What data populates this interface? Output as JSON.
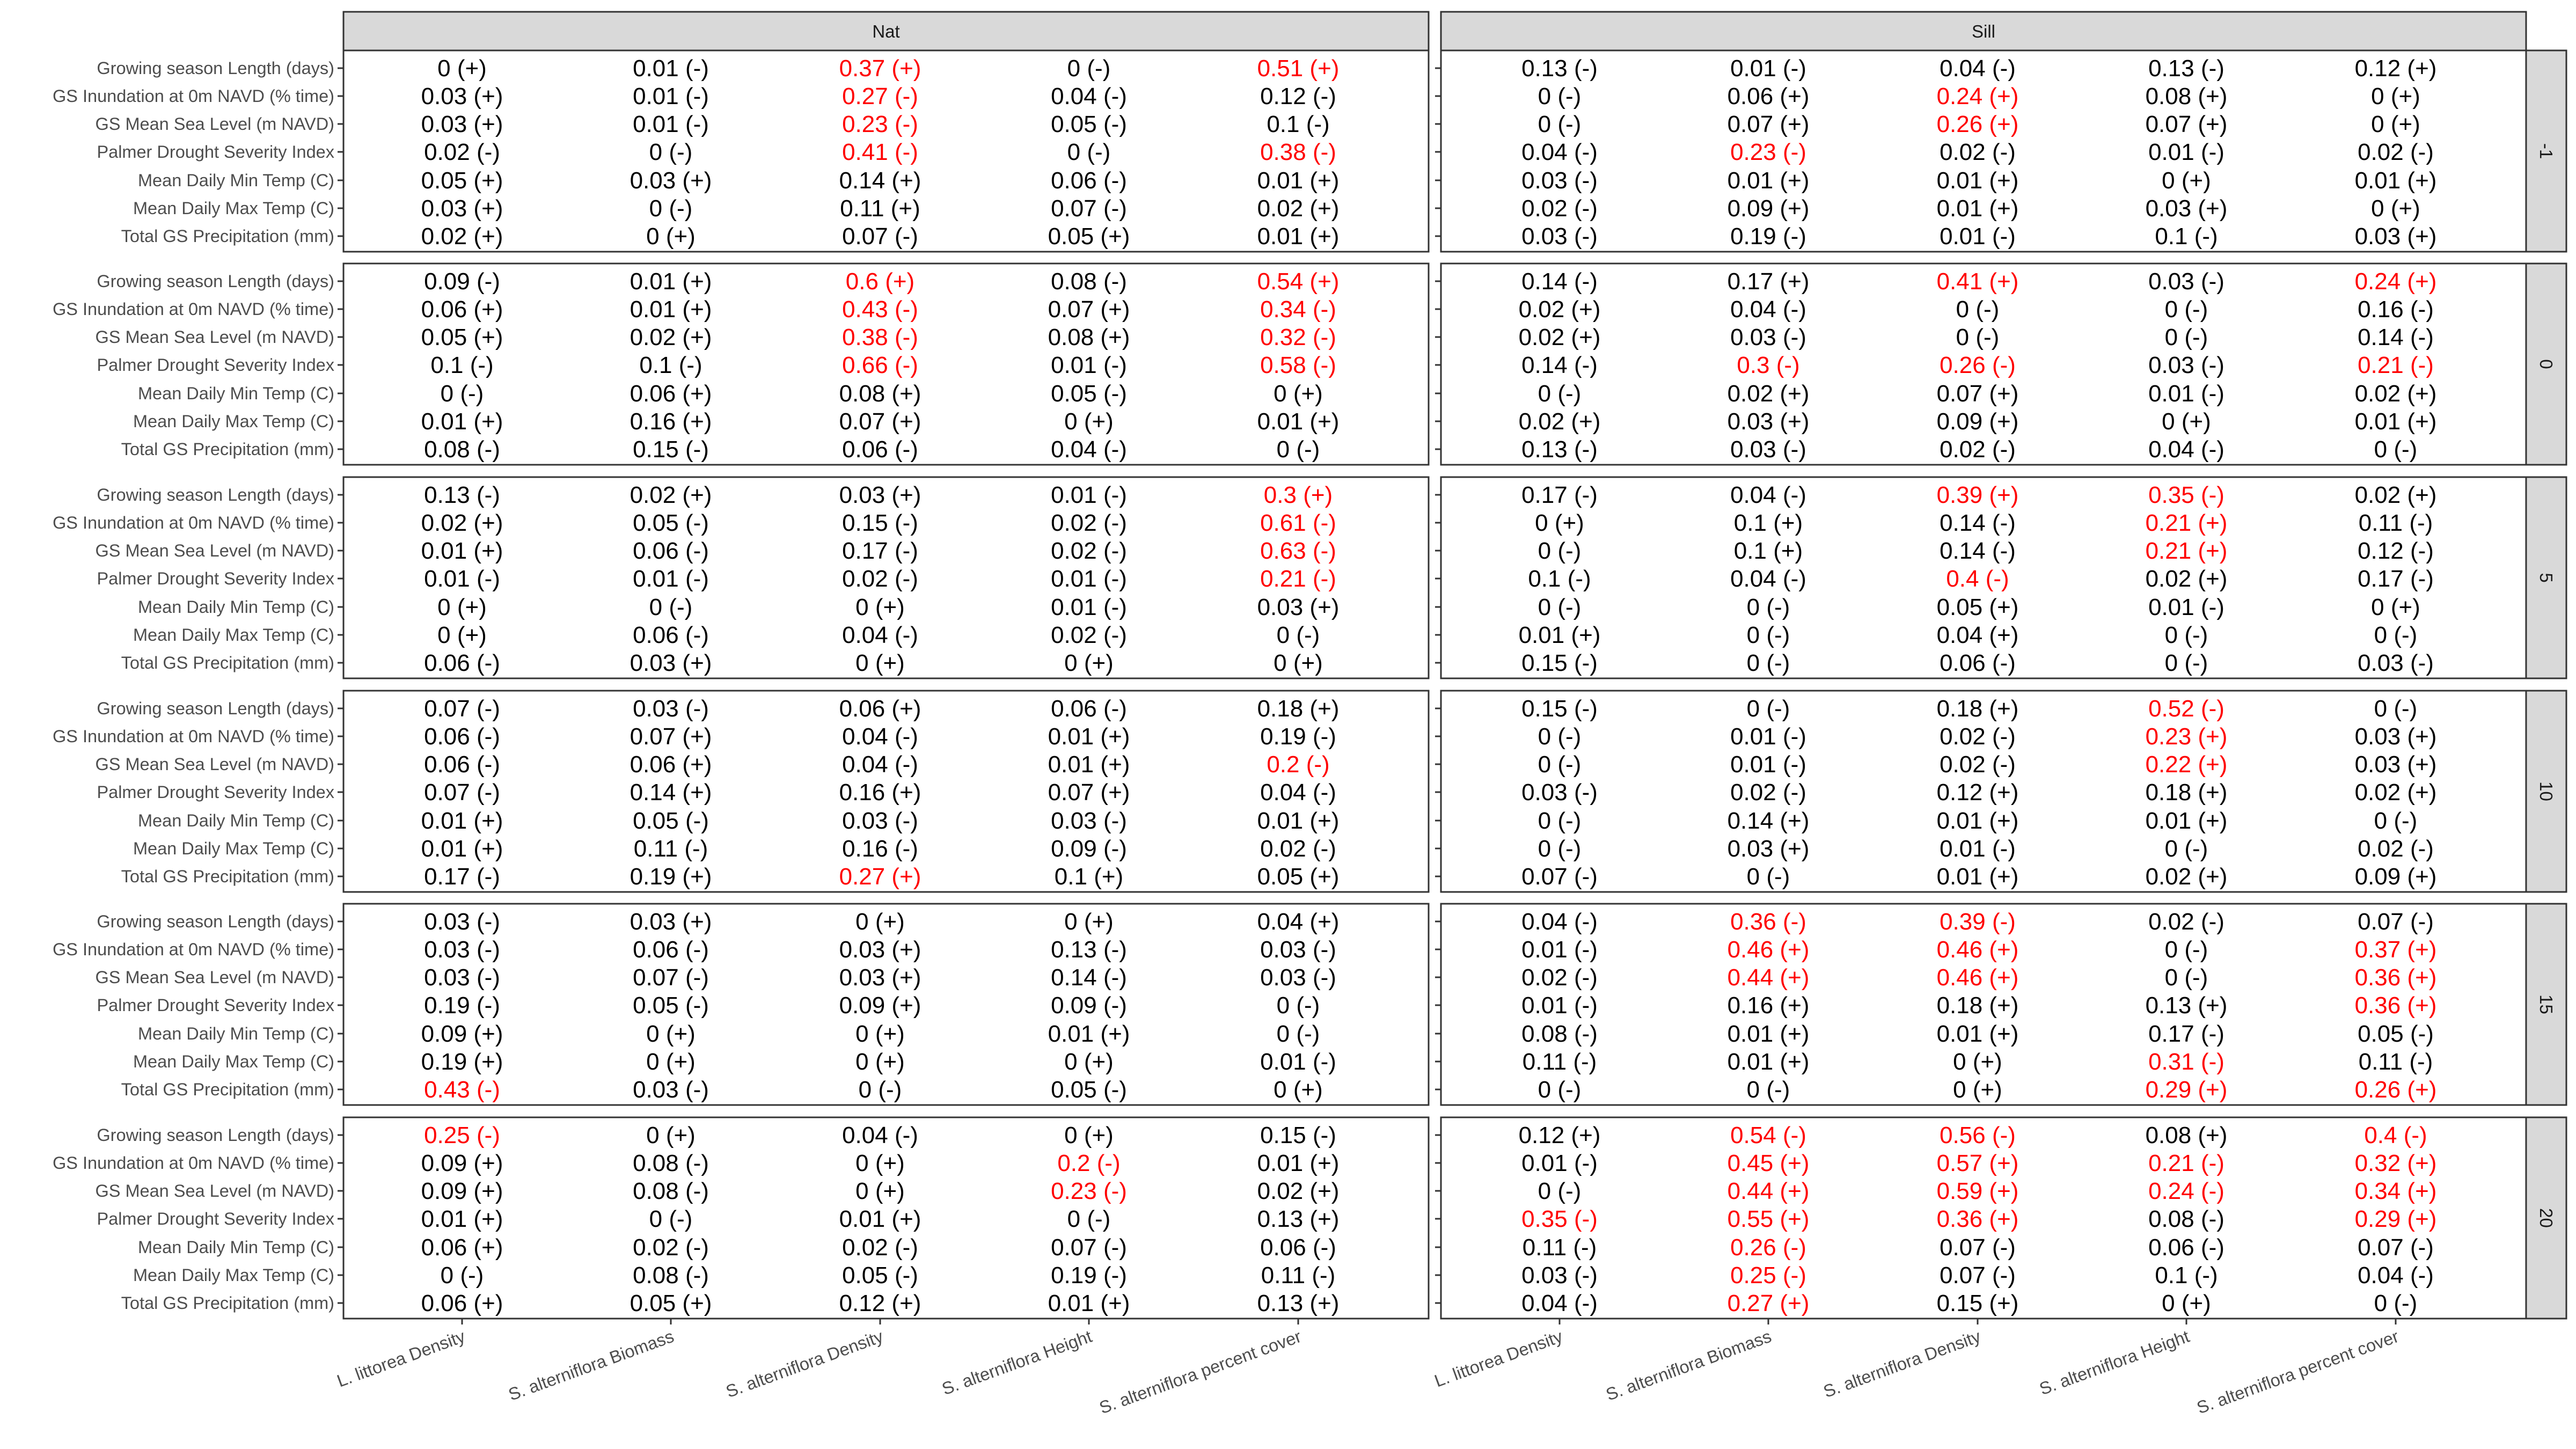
{
  "chart_data": {
    "type": "table",
    "highlight_color": "#ff0000",
    "text_color": "#000000",
    "strip_fill": "#d9d9d9",
    "columns": [
      "Nat",
      "Sill"
    ],
    "rows": [
      "-1",
      "0",
      "5",
      "10",
      "15",
      "20"
    ],
    "y_labels": [
      "Growing season Length (days)",
      "GS Inundation at 0m NAVD (% time)",
      "GS Mean Sea Level (m NAVD)",
      "Palmer Drought Severity Index",
      "Mean Daily Min Temp (C)",
      "Mean Daily Max Temp (C)",
      "Total GS Precipitation (mm)"
    ],
    "x_labels": [
      "L. littorea Density",
      "S. alterniflora Biomass",
      "S. alterniflora Density",
      "S. alterniflora Height",
      "S. alterniflora percent cover"
    ],
    "panels": [
      {
        "column": "Nat",
        "row": "-1",
        "cells": [
          [
            "0 (+)",
            "0.01 (-)",
            "0.37 (+)*",
            "0 (-)",
            "0.51 (+)*"
          ],
          [
            "0.03 (+)",
            "0.01 (-)",
            "0.27 (-)*",
            "0.04 (-)",
            "0.12 (-)"
          ],
          [
            "0.03 (+)",
            "0.01 (-)",
            "0.23 (-)*",
            "0.05 (-)",
            "0.1 (-)"
          ],
          [
            "0.02 (-)",
            "0 (-)",
            "0.41 (-)*",
            "0 (-)",
            "0.38 (-)*"
          ],
          [
            "0.05 (+)",
            "0.03 (+)",
            "0.14 (+)",
            "0.06 (-)",
            "0.01 (+)"
          ],
          [
            "0.03 (+)",
            "0 (-)",
            "0.11 (+)",
            "0.07 (-)",
            "0.02 (+)"
          ],
          [
            "0.02 (+)",
            "0 (+)",
            "0.07 (-)",
            "0.05 (+)",
            "0.01 (+)"
          ]
        ]
      },
      {
        "column": "Sill",
        "row": "-1",
        "cells": [
          [
            "0.13 (-)",
            "0.01 (-)",
            "0.04 (-)",
            "0.13 (-)",
            "0.12 (+)"
          ],
          [
            "0 (-)",
            "0.06 (+)",
            "0.24 (+)*",
            "0.08 (+)",
            "0 (+)"
          ],
          [
            "0 (-)",
            "0.07 (+)",
            "0.26 (+)*",
            "0.07 (+)",
            "0 (+)"
          ],
          [
            "0.04 (-)",
            "0.23 (-)*",
            "0.02 (-)",
            "0.01 (-)",
            "0.02 (-)"
          ],
          [
            "0.03 (-)",
            "0.01 (+)",
            "0.01 (+)",
            "0 (+)",
            "0.01 (+)"
          ],
          [
            "0.02 (-)",
            "0.09 (+)",
            "0.01 (+)",
            "0.03 (+)",
            "0 (+)"
          ],
          [
            "0.03 (-)",
            "0.19 (-)",
            "0.01 (-)",
            "0.1 (-)",
            "0.03 (+)"
          ]
        ]
      },
      {
        "column": "Nat",
        "row": "0",
        "cells": [
          [
            "0.09 (-)",
            "0.01 (+)",
            "0.6 (+)*",
            "0.08 (-)",
            "0.54 (+)*"
          ],
          [
            "0.06 (+)",
            "0.01 (+)",
            "0.43 (-)*",
            "0.07 (+)",
            "0.34 (-)*"
          ],
          [
            "0.05 (+)",
            "0.02 (+)",
            "0.38 (-)*",
            "0.08 (+)",
            "0.32 (-)*"
          ],
          [
            "0.1 (-)",
            "0.1 (-)",
            "0.66 (-)*",
            "0.01 (-)",
            "0.58 (-)*"
          ],
          [
            "0 (-)",
            "0.06 (+)",
            "0.08 (+)",
            "0.05 (-)",
            "0 (+)"
          ],
          [
            "0.01 (+)",
            "0.16 (+)",
            "0.07 (+)",
            "0 (+)",
            "0.01 (+)"
          ],
          [
            "0.08 (-)",
            "0.15 (-)",
            "0.06 (-)",
            "0.04 (-)",
            "0 (-)"
          ]
        ]
      },
      {
        "column": "Sill",
        "row": "0",
        "cells": [
          [
            "0.14 (-)",
            "0.17 (+)",
            "0.41 (+)*",
            "0.03 (-)",
            "0.24 (+)*"
          ],
          [
            "0.02 (+)",
            "0.04 (-)",
            "0 (-)",
            "0 (-)",
            "0.16 (-)"
          ],
          [
            "0.02 (+)",
            "0.03 (-)",
            "0 (-)",
            "0 (-)",
            "0.14 (-)"
          ],
          [
            "0.14 (-)",
            "0.3 (-)*",
            "0.26 (-)*",
            "0.03 (-)",
            "0.21 (-)*"
          ],
          [
            "0 (-)",
            "0.02 (+)",
            "0.07 (+)",
            "0.01 (-)",
            "0.02 (+)"
          ],
          [
            "0.02 (+)",
            "0.03 (+)",
            "0.09 (+)",
            "0 (+)",
            "0.01 (+)"
          ],
          [
            "0.13 (-)",
            "0.03 (-)",
            "0.02 (-)",
            "0.04 (-)",
            "0 (-)"
          ]
        ]
      },
      {
        "column": "Nat",
        "row": "5",
        "cells": [
          [
            "0.13 (-)",
            "0.02 (+)",
            "0.03 (+)",
            "0.01 (-)",
            "0.3 (+)*"
          ],
          [
            "0.02 (+)",
            "0.05 (-)",
            "0.15 (-)",
            "0.02 (-)",
            "0.61 (-)*"
          ],
          [
            "0.01 (+)",
            "0.06 (-)",
            "0.17 (-)",
            "0.02 (-)",
            "0.63 (-)*"
          ],
          [
            "0.01 (-)",
            "0.01 (-)",
            "0.02 (-)",
            "0.01 (-)",
            "0.21 (-)*"
          ],
          [
            "0 (+)",
            "0 (-)",
            "0 (+)",
            "0.01 (-)",
            "0.03 (+)"
          ],
          [
            "0 (+)",
            "0.06 (-)",
            "0.04 (-)",
            "0.02 (-)",
            "0 (-)"
          ],
          [
            "0.06 (-)",
            "0.03 (+)",
            "0 (+)",
            "0 (+)",
            "0 (+)"
          ]
        ]
      },
      {
        "column": "Sill",
        "row": "5",
        "cells": [
          [
            "0.17 (-)",
            "0.04 (-)",
            "0.39 (+)*",
            "0.35 (-)*",
            "0.02 (+)"
          ],
          [
            "0 (+)",
            "0.1 (+)",
            "0.14 (-)",
            "0.21 (+)*",
            "0.11 (-)"
          ],
          [
            "0 (-)",
            "0.1 (+)",
            "0.14 (-)",
            "0.21 (+)*",
            "0.12 (-)"
          ],
          [
            "0.1 (-)",
            "0.04 (-)",
            "0.4 (-)*",
            "0.02 (+)",
            "0.17 (-)"
          ],
          [
            "0 (-)",
            "0 (-)",
            "0.05 (+)",
            "0.01 (-)",
            "0 (+)"
          ],
          [
            "0.01 (+)",
            "0 (-)",
            "0.04 (+)",
            "0 (-)",
            "0 (-)"
          ],
          [
            "0.15 (-)",
            "0 (-)",
            "0.06 (-)",
            "0 (-)",
            "0.03 (-)"
          ]
        ]
      },
      {
        "column": "Nat",
        "row": "10",
        "cells": [
          [
            "0.07 (-)",
            "0.03 (-)",
            "0.06 (+)",
            "0.06 (-)",
            "0.18 (+)"
          ],
          [
            "0.06 (-)",
            "0.07 (+)",
            "0.04 (-)",
            "0.01 (+)",
            "0.19 (-)"
          ],
          [
            "0.06 (-)",
            "0.06 (+)",
            "0.04 (-)",
            "0.01 (+)",
            "0.2 (-)*"
          ],
          [
            "0.07 (-)",
            "0.14 (+)",
            "0.16 (+)",
            "0.07 (+)",
            "0.04 (-)"
          ],
          [
            "0.01 (+)",
            "0.05 (-)",
            "0.03 (-)",
            "0.03 (-)",
            "0.01 (+)"
          ],
          [
            "0.01 (+)",
            "0.11 (-)",
            "0.16 (-)",
            "0.09 (-)",
            "0.02 (-)"
          ],
          [
            "0.17 (-)",
            "0.19 (+)",
            "0.27 (+)*",
            "0.1 (+)",
            "0.05 (+)"
          ]
        ]
      },
      {
        "column": "Sill",
        "row": "10",
        "cells": [
          [
            "0.15 (-)",
            "0 (-)",
            "0.18 (+)",
            "0.52 (-)*",
            "0 (-)"
          ],
          [
            "0 (-)",
            "0.01 (-)",
            "0.02 (-)",
            "0.23 (+)*",
            "0.03 (+)"
          ],
          [
            "0 (-)",
            "0.01 (-)",
            "0.02 (-)",
            "0.22 (+)*",
            "0.03 (+)"
          ],
          [
            "0.03 (-)",
            "0.02 (-)",
            "0.12 (+)",
            "0.18 (+)",
            "0.02 (+)"
          ],
          [
            "0 (-)",
            "0.14 (+)",
            "0.01 (+)",
            "0.01 (+)",
            "0 (-)"
          ],
          [
            "0 (-)",
            "0.03 (+)",
            "0.01 (-)",
            "0 (-)",
            "0.02 (-)"
          ],
          [
            "0.07 (-)",
            "0 (-)",
            "0.01 (+)",
            "0.02 (+)",
            "0.09 (+)"
          ]
        ]
      },
      {
        "column": "Nat",
        "row": "15",
        "cells": [
          [
            "0.03 (-)",
            "0.03 (+)",
            "0 (+)",
            "0 (+)",
            "0.04 (+)"
          ],
          [
            "0.03 (-)",
            "0.06 (-)",
            "0.03 (+)",
            "0.13 (-)",
            "0.03 (-)"
          ],
          [
            "0.03 (-)",
            "0.07 (-)",
            "0.03 (+)",
            "0.14 (-)",
            "0.03 (-)"
          ],
          [
            "0.19 (-)",
            "0.05 (-)",
            "0.09 (+)",
            "0.09 (-)",
            "0 (-)"
          ],
          [
            "0.09 (+)",
            "0 (+)",
            "0 (+)",
            "0.01 (+)",
            "0 (-)"
          ],
          [
            "0.19 (+)",
            "0 (+)",
            "0 (+)",
            "0 (+)",
            "0.01 (-)"
          ],
          [
            "0.43 (-)*",
            "0.03 (-)",
            "0 (-)",
            "0.05 (-)",
            "0 (+)"
          ]
        ]
      },
      {
        "column": "Sill",
        "row": "15",
        "cells": [
          [
            "0.04 (-)",
            "0.36 (-)*",
            "0.39 (-)*",
            "0.02 (-)",
            "0.07 (-)"
          ],
          [
            "0.01 (-)",
            "0.46 (+)*",
            "0.46 (+)*",
            "0 (-)",
            "0.37 (+)*"
          ],
          [
            "0.02 (-)",
            "0.44 (+)*",
            "0.46 (+)*",
            "0 (-)",
            "0.36 (+)*"
          ],
          [
            "0.01 (-)",
            "0.16 (+)",
            "0.18 (+)",
            "0.13 (+)",
            "0.36 (+)*"
          ],
          [
            "0.08 (-)",
            "0.01 (+)",
            "0.01 (+)",
            "0.17 (-)",
            "0.05 (-)"
          ],
          [
            "0.11 (-)",
            "0.01 (+)",
            "0 (+)",
            "0.31 (-)*",
            "0.11 (-)"
          ],
          [
            "0 (-)",
            "0 (-)",
            "0 (+)",
            "0.29 (+)*",
            "0.26 (+)*"
          ]
        ]
      },
      {
        "column": "Nat",
        "row": "20",
        "cells": [
          [
            "0.25 (-)*",
            "0 (+)",
            "0.04 (-)",
            "0 (+)",
            "0.15 (-)"
          ],
          [
            "0.09 (+)",
            "0.08 (-)",
            "0 (+)",
            "0.2 (-)*",
            "0.01 (+)"
          ],
          [
            "0.09 (+)",
            "0.08 (-)",
            "0 (+)",
            "0.23 (-)*",
            "0.02 (+)"
          ],
          [
            "0.01 (+)",
            "0 (-)",
            "0.01 (+)",
            "0 (-)",
            "0.13 (+)"
          ],
          [
            "0.06 (+)",
            "0.02 (-)",
            "0.02 (-)",
            "0.07 (-)",
            "0.06 (-)"
          ],
          [
            "0 (-)",
            "0.08 (-)",
            "0.05 (-)",
            "0.19 (-)",
            "0.11 (-)"
          ],
          [
            "0.06 (+)",
            "0.05 (+)",
            "0.12 (+)",
            "0.01 (+)",
            "0.13 (+)"
          ]
        ]
      },
      {
        "column": "Sill",
        "row": "20",
        "cells": [
          [
            "0.12 (+)",
            "0.54 (-)*",
            "0.56 (-)*",
            "0.08 (+)",
            "0.4 (-)*"
          ],
          [
            "0.01 (-)",
            "0.45 (+)*",
            "0.57 (+)*",
            "0.21 (-)*",
            "0.32 (+)*"
          ],
          [
            "0 (-)",
            "0.44 (+)*",
            "0.59 (+)*",
            "0.24 (-)*",
            "0.34 (+)*"
          ],
          [
            "0.35 (-)*",
            "0.55 (+)*",
            "0.36 (+)*",
            "0.08 (-)",
            "0.29 (+)*"
          ],
          [
            "0.11 (-)",
            "0.26 (-)*",
            "0.07 (-)",
            "0.06 (-)",
            "0.07 (-)"
          ],
          [
            "0.03 (-)",
            "0.25 (-)*",
            "0.07 (-)",
            "0.1 (-)",
            "0.04 (-)"
          ],
          [
            "0.04 (-)",
            "0.27 (+)*",
            "0.15 (+)",
            "0 (+)",
            "0 (-)"
          ]
        ]
      }
    ]
  }
}
